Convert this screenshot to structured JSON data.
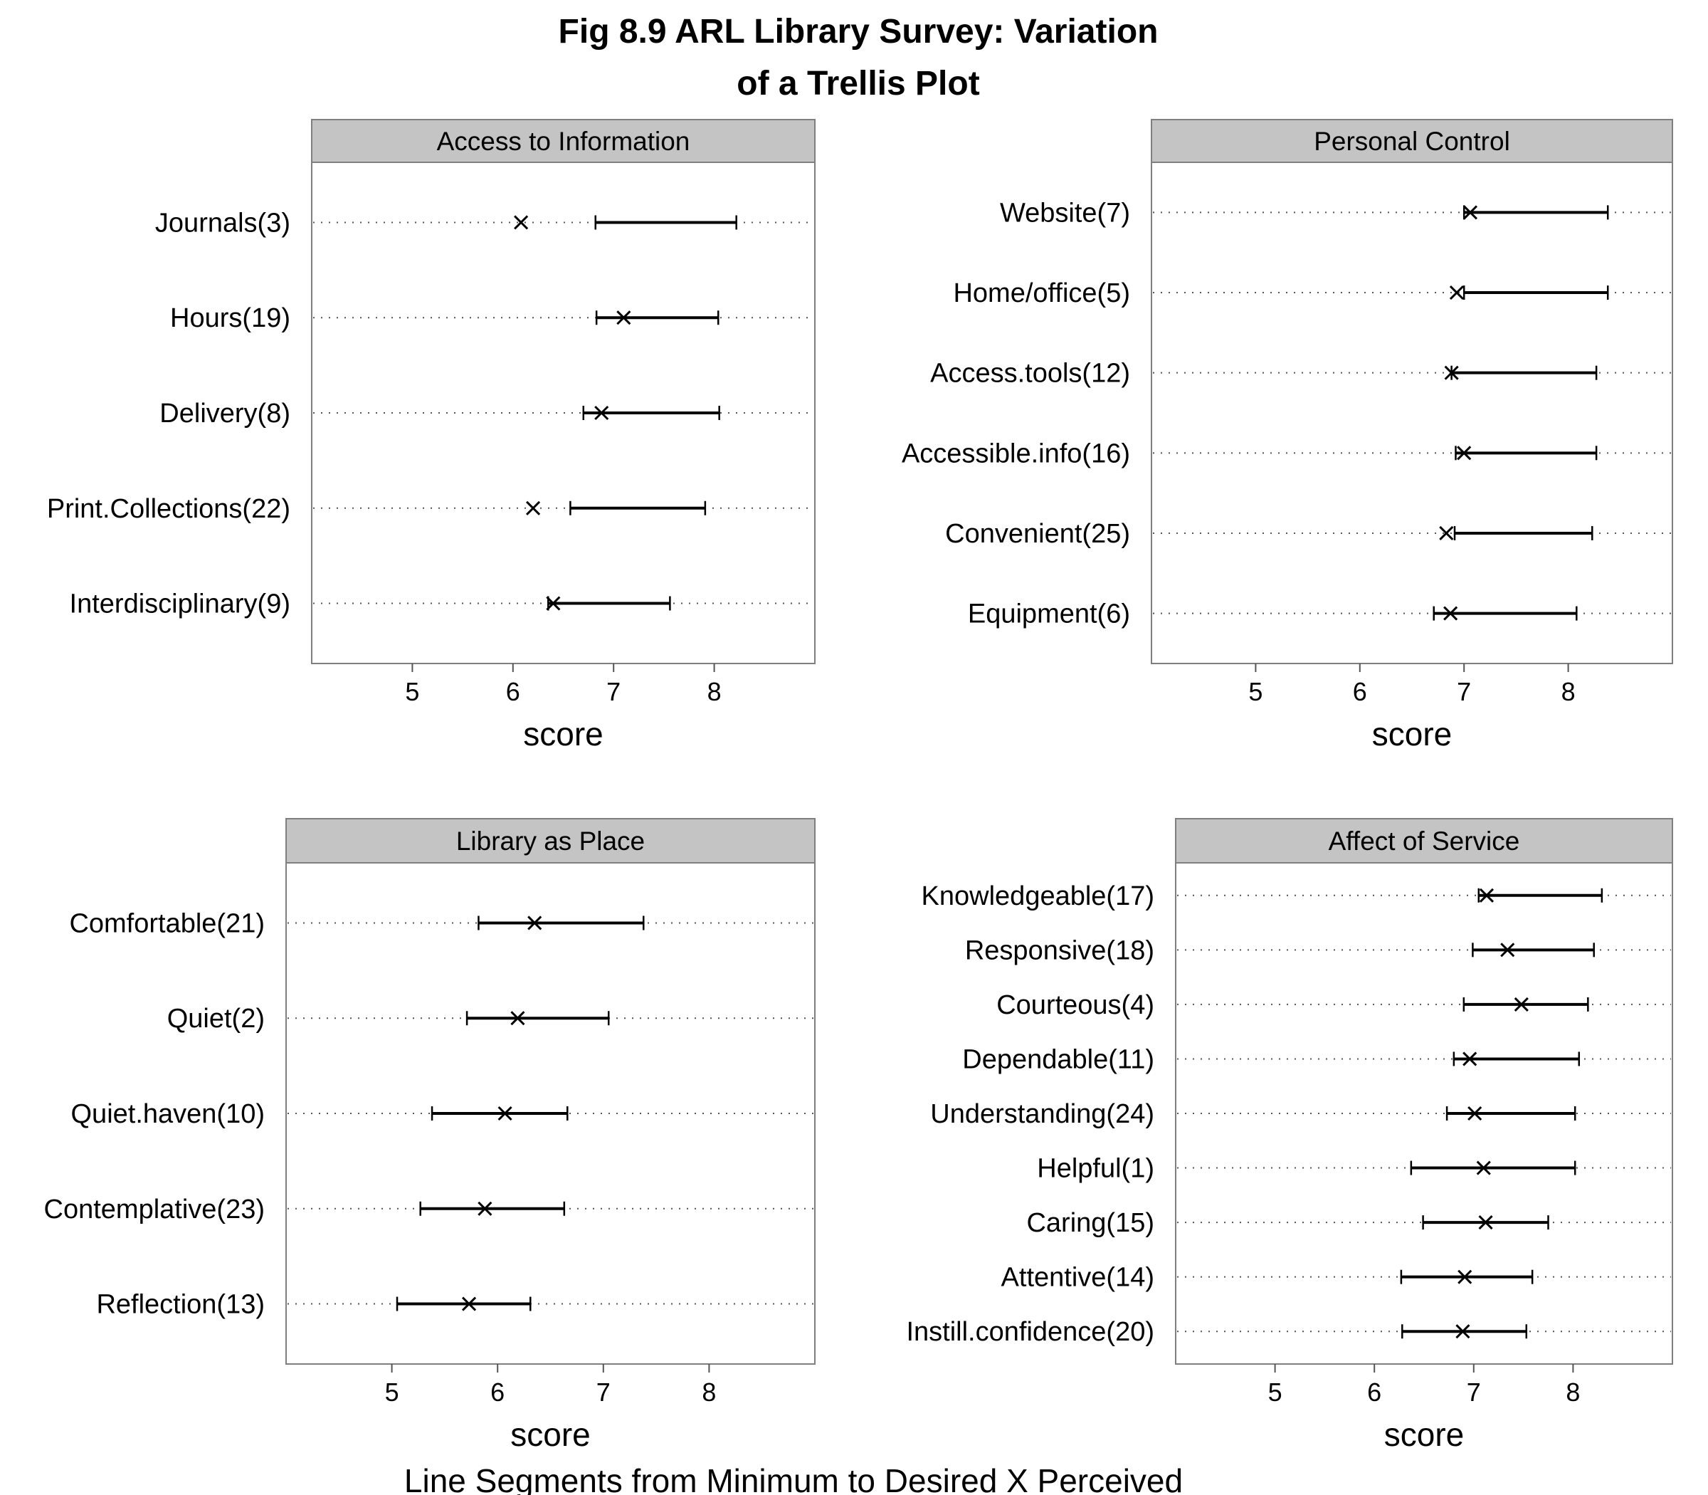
{
  "figure": {
    "title_line1": "Fig 8.9 ARL Library Survey: Variation",
    "title_line2": "of a Trellis Plot",
    "legend": "Line Segments from Minimum to Desired    X Perceived"
  },
  "chart_data": [
    {
      "type": "dot-range",
      "panel": "Access to Information",
      "xlabel": "score",
      "xticks": [
        5,
        6,
        7,
        8
      ],
      "xlim": [
        4.0,
        9.0
      ],
      "grid": "dotted horizontal",
      "rows": [
        {
          "label": "Journals(3)",
          "minimum": 6.82,
          "desired": 8.22,
          "perceived": 6.08
        },
        {
          "label": "Hours(19)",
          "minimum": 6.83,
          "desired": 8.04,
          "perceived": 7.1
        },
        {
          "label": "Delivery(8)",
          "minimum": 6.7,
          "desired": 8.05,
          "perceived": 6.88
        },
        {
          "label": "Print.Collections(22)",
          "minimum": 6.57,
          "desired": 7.91,
          "perceived": 6.2
        },
        {
          "label": "Interdisciplinary(9)",
          "minimum": 6.35,
          "desired": 7.56,
          "perceived": 6.4
        }
      ]
    },
    {
      "type": "dot-range",
      "panel": "Personal Control",
      "xlabel": "score",
      "xticks": [
        5,
        6,
        7,
        8
      ],
      "xlim": [
        4.0,
        9.0
      ],
      "grid": "dotted horizontal",
      "rows": [
        {
          "label": "Website(7)",
          "minimum": 7.0,
          "desired": 8.38,
          "perceived": 7.06
        },
        {
          "label": "Home/office(5)",
          "minimum": 7.0,
          "desired": 8.38,
          "perceived": 6.93
        },
        {
          "label": "Access.tools(12)",
          "minimum": 6.88,
          "desired": 8.27,
          "perceived": 6.88
        },
        {
          "label": "Accessible.info(16)",
          "minimum": 6.92,
          "desired": 8.27,
          "perceived": 7.0
        },
        {
          "label": "Convenient(25)",
          "minimum": 6.91,
          "desired": 8.23,
          "perceived": 6.83
        },
        {
          "label": "Equipment(6)",
          "minimum": 6.71,
          "desired": 8.08,
          "perceived": 6.87
        }
      ]
    },
    {
      "type": "dot-range",
      "panel": "Library as Place",
      "xlabel": "score",
      "xticks": [
        5,
        6,
        7,
        8
      ],
      "xlim": [
        4.0,
        9.0
      ],
      "grid": "dotted horizontal",
      "rows": [
        {
          "label": "Comfortable(21)",
          "minimum": 5.82,
          "desired": 7.38,
          "perceived": 6.35
        },
        {
          "label": "Quiet(2)",
          "minimum": 5.71,
          "desired": 7.05,
          "perceived": 6.19
        },
        {
          "label": "Quiet.haven(10)",
          "minimum": 5.38,
          "desired": 6.66,
          "perceived": 6.07
        },
        {
          "label": "Contemplative(23)",
          "minimum": 5.27,
          "desired": 6.63,
          "perceived": 5.88
        },
        {
          "label": "Reflection(13)",
          "minimum": 5.05,
          "desired": 6.31,
          "perceived": 5.73
        }
      ]
    },
    {
      "type": "dot-range",
      "panel": "Affect of Service",
      "xlabel": "score",
      "xticks": [
        5,
        6,
        7,
        8
      ],
      "xlim": [
        4.0,
        9.0
      ],
      "grid": "dotted horizontal",
      "rows": [
        {
          "label": "Knowledgeable(17)",
          "minimum": 7.05,
          "desired": 8.29,
          "perceived": 7.13
        },
        {
          "label": "Responsive(18)",
          "minimum": 6.99,
          "desired": 8.21,
          "perceived": 7.34
        },
        {
          "label": "Courteous(4)",
          "minimum": 6.9,
          "desired": 8.15,
          "perceived": 7.48
        },
        {
          "label": "Dependable(11)",
          "minimum": 6.8,
          "desired": 8.06,
          "perceived": 6.96
        },
        {
          "label": "Understanding(24)",
          "minimum": 6.73,
          "desired": 8.02,
          "perceived": 7.01
        },
        {
          "label": "Helpful(1)",
          "minimum": 6.37,
          "desired": 8.02,
          "perceived": 7.1
        },
        {
          "label": "Caring(15)",
          "minimum": 6.49,
          "desired": 7.75,
          "perceived": 7.12
        },
        {
          "label": "Attentive(14)",
          "minimum": 6.27,
          "desired": 7.59,
          "perceived": 6.91
        },
        {
          "label": "Instill.confidence(20)",
          "minimum": 6.28,
          "desired": 7.53,
          "perceived": 6.89
        }
      ]
    }
  ]
}
